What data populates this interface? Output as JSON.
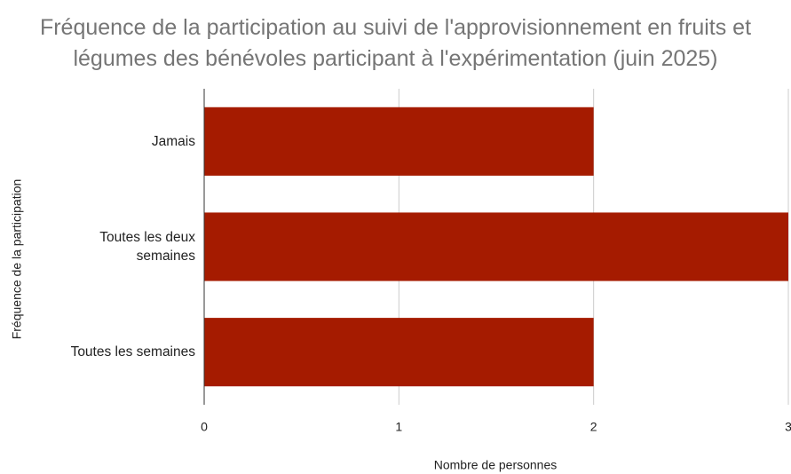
{
  "chart_data": {
    "type": "bar",
    "orientation": "horizontal",
    "title": "Fréquence de la participation au suivi de l'approvisionnement en fruits et légumes des bénévoles participant à l'expérimentation (juin 2025)",
    "categories": [
      "Jamais",
      "Toutes les deux semaines",
      "Toutes les semaines"
    ],
    "values": [
      2,
      3,
      2
    ],
    "color": "#a51b00",
    "xlim": [
      0,
      3
    ],
    "xticks": [
      0,
      1,
      2,
      3
    ],
    "grid": true,
    "x_label": "Nombre de personnes",
    "y_label": "Fréquence de la participation"
  }
}
